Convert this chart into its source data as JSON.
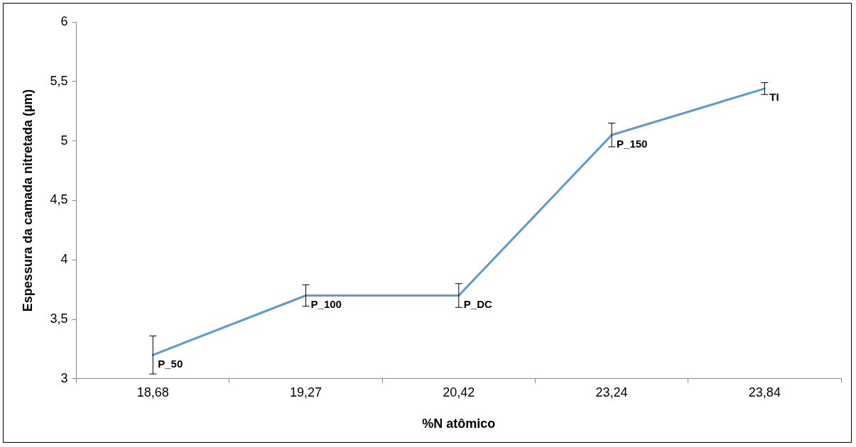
{
  "chart_data": {
    "type": "line",
    "xlabel": "%N atômico",
    "ylabel": "Espessura da camada nitretada (µm)",
    "categories": [
      "18,68",
      "19,27",
      "20,42",
      "23,24",
      "23,84"
    ],
    "series": [
      {
        "color": "#5b9bd5",
        "values": [
          3.2,
          3.7,
          3.7,
          5.05,
          5.44
        ],
        "errors": [
          0.16,
          0.09,
          0.1,
          0.1,
          0.05
        ]
      }
    ],
    "ylim": [
      3,
      6
    ],
    "yticks": [
      3,
      {
        "value": 3.5,
        "label": "3,5"
      },
      4,
      {
        "value": 4.5,
        "label": "4,5"
      },
      5,
      {
        "value": 5.5,
        "label": "5,5"
      },
      6
    ],
    "marker": "none",
    "line_style": "solid",
    "annotations": [
      {
        "text": "P_50",
        "x": "18,68",
        "y": 3.2
      },
      {
        "text": "P_100",
        "x": "19,27",
        "y": 3.7
      },
      {
        "text": "P_DC",
        "x": "20,42",
        "y": 3.7
      },
      {
        "text": "P_150",
        "x": "23,24",
        "y": 5.05
      },
      {
        "text": "TI",
        "x": "23,84",
        "y": 5.44
      }
    ]
  }
}
